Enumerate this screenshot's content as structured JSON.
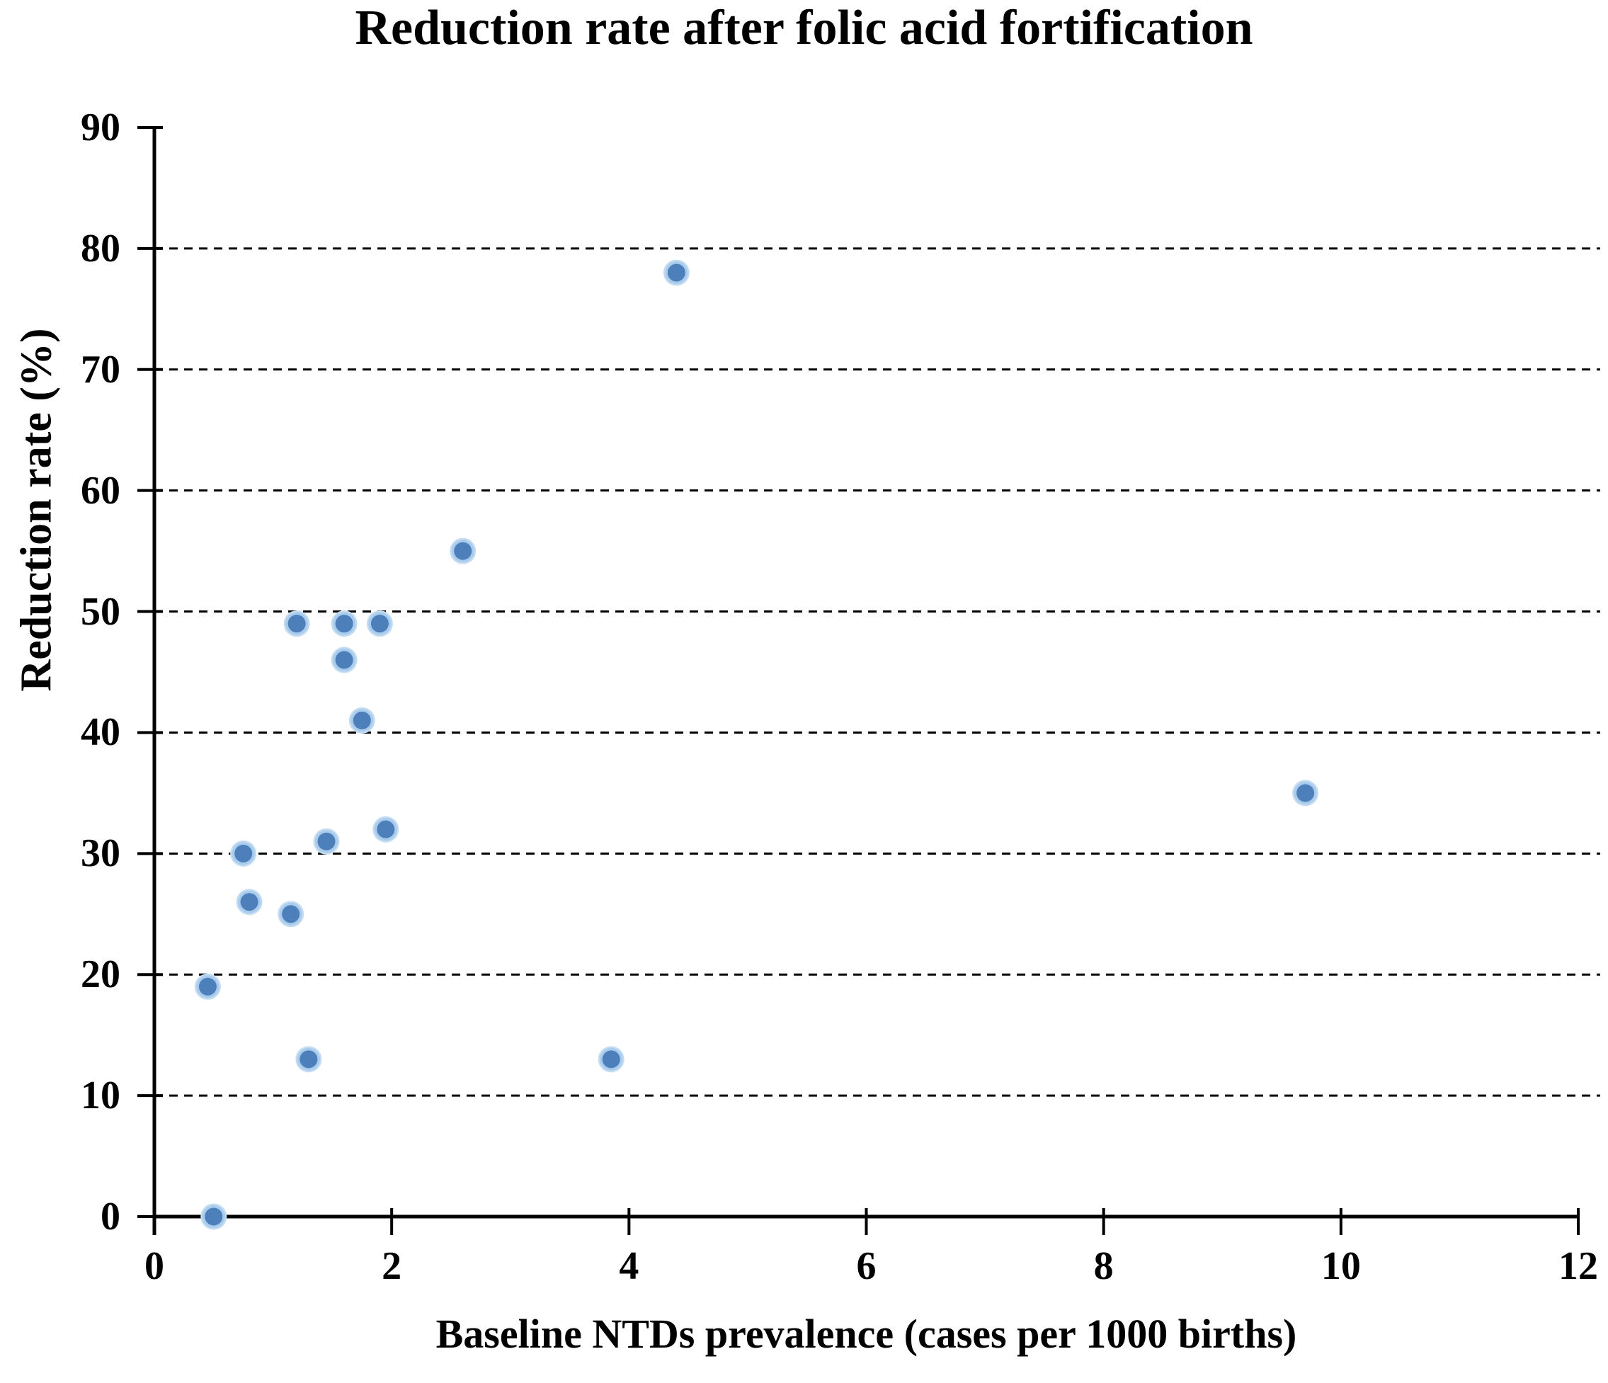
{
  "chart_data": {
    "type": "scatter",
    "title": "Reduction rate after folic acid fortification",
    "xlabel": "Baseline NTDs prevalence (cases per 1000 births)",
    "ylabel": "Reduction rate (%)",
    "xlim": [
      0,
      12
    ],
    "ylim": [
      0,
      90
    ],
    "x_ticks": [
      0,
      2,
      4,
      6,
      8,
      10,
      12
    ],
    "y_ticks": [
      0,
      10,
      20,
      30,
      40,
      50,
      60,
      70,
      80,
      90
    ],
    "grid": "horizontal-dashed-black",
    "legend_position": "none",
    "points": [
      {
        "x": 0.45,
        "y": 19
      },
      {
        "x": 0.5,
        "y": 0
      },
      {
        "x": 0.75,
        "y": 30
      },
      {
        "x": 0.8,
        "y": 26
      },
      {
        "x": 1.15,
        "y": 25
      },
      {
        "x": 1.2,
        "y": 49
      },
      {
        "x": 1.3,
        "y": 13
      },
      {
        "x": 1.45,
        "y": 31
      },
      {
        "x": 1.6,
        "y": 46
      },
      {
        "x": 1.6,
        "y": 49
      },
      {
        "x": 1.75,
        "y": 41
      },
      {
        "x": 1.9,
        "y": 49
      },
      {
        "x": 1.95,
        "y": 32
      },
      {
        "x": 2.6,
        "y": 55
      },
      {
        "x": 3.85,
        "y": 13
      },
      {
        "x": 4.4,
        "y": 78
      },
      {
        "x": 9.7,
        "y": 35
      }
    ],
    "colors": {
      "marker_core": "#4D7FBA",
      "marker_halo": "#A9CBEC",
      "marker_halo_outer": "#C3DCF2",
      "axis": "#000000",
      "gridline": "#000000",
      "text": "#000000",
      "background": "#FFFFFF"
    }
  }
}
